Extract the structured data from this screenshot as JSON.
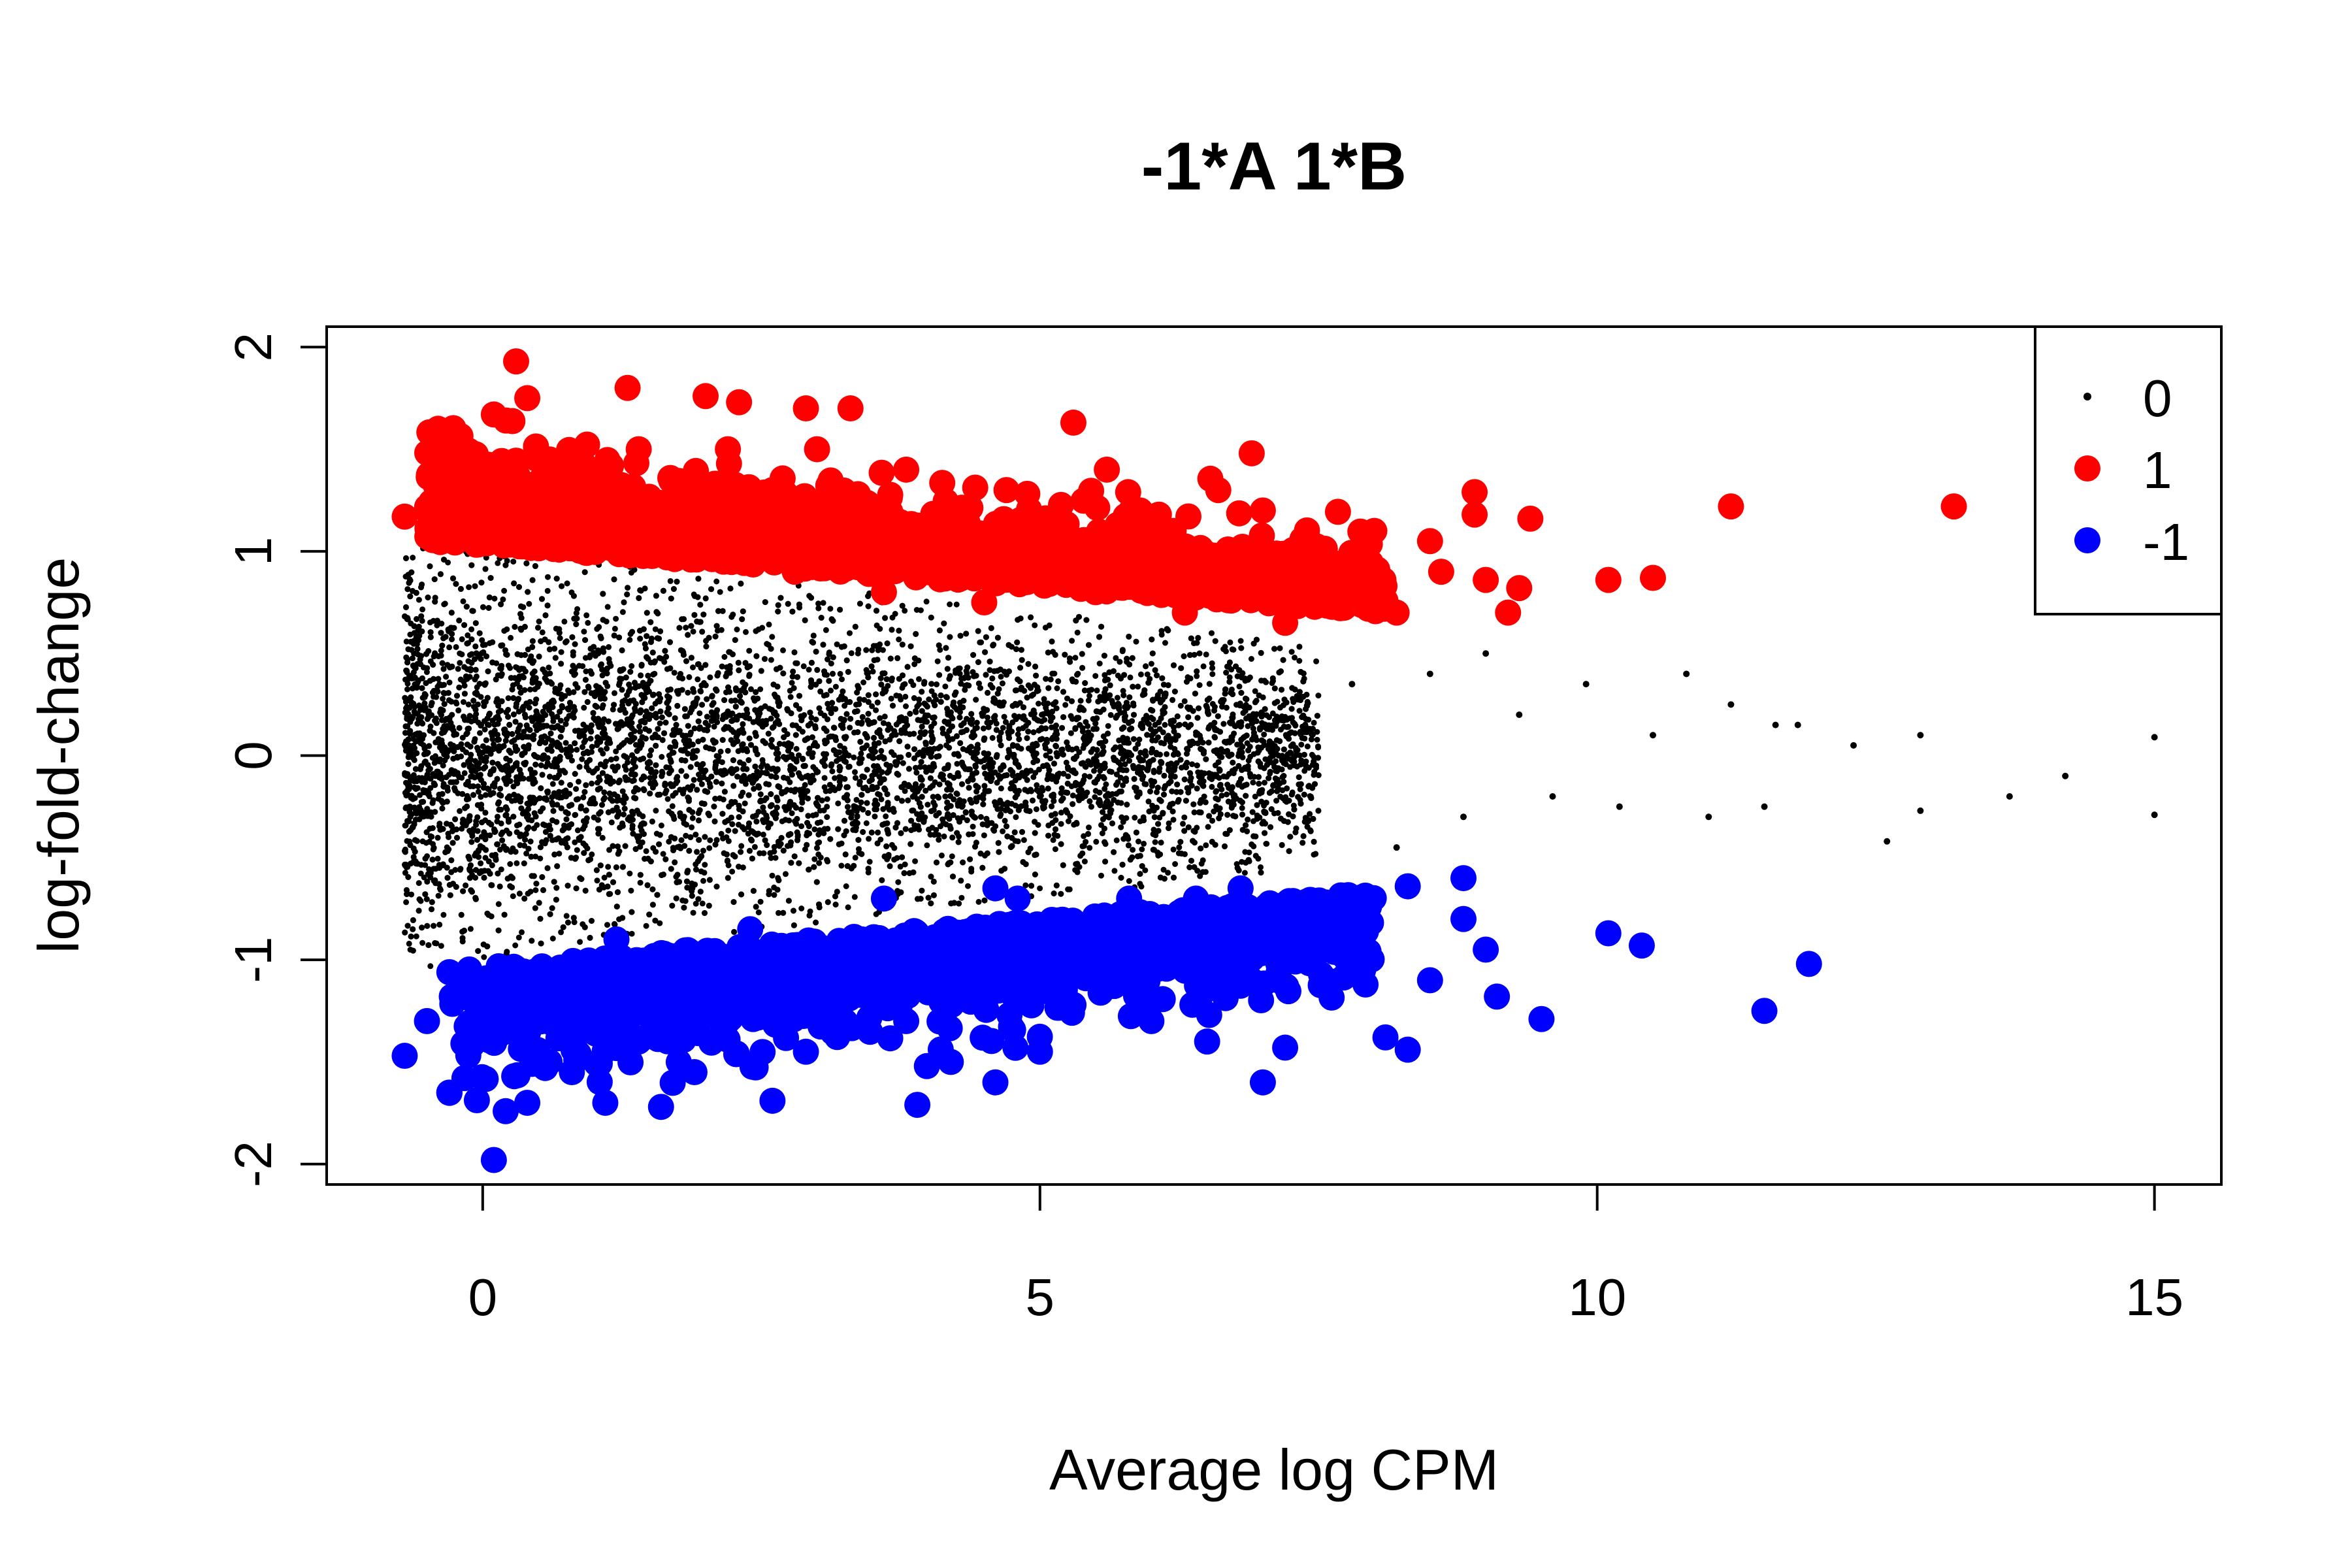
{
  "chart_data": {
    "type": "scatter",
    "title": "-1*A 1*B",
    "xlabel": "Average log CPM",
    "ylabel": "log-fold-change",
    "xlim": [
      -1.4,
      15.6
    ],
    "ylim": [
      -2.1,
      2.1
    ],
    "xticks": [
      "0",
      "5",
      "10",
      "15"
    ],
    "yticks": [
      "-2",
      "-1",
      "0",
      "1",
      "2"
    ],
    "grid": false,
    "legend": {
      "position": "top-right",
      "entries": [
        "0",
        "1",
        "-1"
      ]
    },
    "series": [
      {
        "name": "0",
        "color": "#000000",
        "marker": "small-dot",
        "density_bounds": {
          "x_range": [
            -0.7,
            7.5
          ],
          "lfc_upper_at_low_cpm": 1.05,
          "lfc_upper_at_high_cpm": 0.55
        },
        "points": [
          [
            7.8,
            0.35
          ],
          [
            8.2,
            -0.45
          ],
          [
            8.5,
            0.4
          ],
          [
            8.8,
            -0.3
          ],
          [
            9.0,
            0.5
          ],
          [
            9.3,
            0.2
          ],
          [
            9.6,
            -0.2
          ],
          [
            9.9,
            0.35
          ],
          [
            10.2,
            -0.25
          ],
          [
            10.5,
            0.1
          ],
          [
            10.8,
            0.4
          ],
          [
            11.0,
            -0.3
          ],
          [
            11.2,
            0.25
          ],
          [
            11.5,
            -0.25
          ],
          [
            11.6,
            0.15
          ],
          [
            11.8,
            0.15
          ],
          [
            12.3,
            0.05
          ],
          [
            12.6,
            -0.42
          ],
          [
            12.9,
            0.1
          ],
          [
            12.9,
            -0.27
          ],
          [
            13.7,
            -0.2
          ],
          [
            14.2,
            -0.1
          ],
          [
            15.0,
            0.09
          ],
          [
            15.0,
            -0.29
          ]
        ]
      },
      {
        "name": "1",
        "color": "#ff0000",
        "marker": "large-dot",
        "points": [
          [
            -0.7,
            1.17
          ],
          [
            -0.4,
            1.6
          ],
          [
            0.1,
            1.67
          ],
          [
            0.3,
            1.93
          ],
          [
            0.4,
            1.75
          ],
          [
            1.3,
            1.8
          ],
          [
            2.0,
            1.76
          ],
          [
            2.3,
            1.73
          ],
          [
            2.9,
            1.7
          ],
          [
            3.3,
            1.7
          ],
          [
            5.3,
            1.63
          ],
          [
            6.9,
            1.48
          ],
          [
            8.9,
            1.29
          ],
          [
            8.9,
            1.18
          ],
          [
            9.4,
            1.16
          ],
          [
            9.3,
            0.82
          ],
          [
            9.0,
            0.86
          ],
          [
            9.2,
            0.7
          ],
          [
            10.1,
            0.86
          ],
          [
            10.5,
            0.87
          ],
          [
            11.2,
            1.22
          ],
          [
            13.2,
            1.22
          ],
          [
            8.0,
            1.1
          ],
          [
            8.5,
            1.05
          ],
          [
            8.6,
            0.9
          ],
          [
            8.2,
            0.7
          ],
          [
            7.8,
            0.8
          ],
          [
            7.4,
            1.0
          ],
          [
            7.0,
            1.2
          ],
          [
            6.6,
            1.3
          ],
          [
            6.2,
            1.1
          ],
          [
            5.9,
            1.2
          ],
          [
            5.6,
            1.4
          ],
          [
            5.1,
            1.1
          ],
          [
            4.7,
            1.3
          ],
          [
            4.2,
            1.2
          ],
          [
            3.8,
            1.4
          ],
          [
            3.4,
            1.2
          ],
          [
            3.0,
            1.5
          ],
          [
            2.6,
            1.3
          ],
          [
            2.2,
            1.5
          ],
          [
            1.8,
            1.3
          ],
          [
            1.4,
            1.5
          ],
          [
            1.0,
            1.35
          ],
          [
            0.6,
            1.45
          ],
          [
            0.2,
            1.3
          ],
          [
            -0.3,
            1.25
          ],
          [
            -0.5,
            1.2
          ],
          [
            6.3,
            0.7
          ],
          [
            5.5,
            0.8
          ],
          [
            4.5,
            0.75
          ],
          [
            3.6,
            0.8
          ],
          [
            2.8,
            0.9
          ],
          [
            1.6,
            1.0
          ],
          [
            7.2,
            0.65
          ],
          [
            6.0,
            0.95
          ],
          [
            4.9,
            0.95
          ],
          [
            4.0,
            1.0
          ],
          [
            3.2,
            1.05
          ],
          [
            2.4,
            1.1
          ]
        ]
      },
      {
        "name": "-1",
        "color": "#0000ff",
        "marker": "large-dot",
        "points": [
          [
            -0.7,
            -1.47
          ],
          [
            -0.3,
            -1.65
          ],
          [
            0.1,
            -1.98
          ],
          [
            0.4,
            -1.7
          ],
          [
            1.1,
            -1.7
          ],
          [
            1.6,
            -1.72
          ],
          [
            2.6,
            -1.69
          ],
          [
            3.9,
            -1.71
          ],
          [
            4.6,
            -1.6
          ],
          [
            7.0,
            -1.6
          ],
          [
            7.2,
            -1.43
          ],
          [
            8.3,
            -1.44
          ],
          [
            8.1,
            -1.38
          ],
          [
            9.5,
            -1.29
          ],
          [
            9.1,
            -1.18
          ],
          [
            8.8,
            -0.8
          ],
          [
            8.3,
            -0.64
          ],
          [
            8.8,
            -0.6
          ],
          [
            10.1,
            -0.87
          ],
          [
            10.4,
            -0.93
          ],
          [
            11.5,
            -1.25
          ],
          [
            11.9,
            -1.02
          ],
          [
            7.7,
            -0.75
          ],
          [
            7.3,
            -0.9
          ],
          [
            6.9,
            -1.1
          ],
          [
            6.4,
            -0.7
          ],
          [
            6.0,
            -1.3
          ],
          [
            5.6,
            -0.9
          ],
          [
            5.2,
            -1.2
          ],
          [
            4.8,
            -0.7
          ],
          [
            4.3,
            -1.0
          ],
          [
            3.8,
            -1.3
          ],
          [
            3.4,
            -0.9
          ],
          [
            3.0,
            -1.2
          ],
          [
            2.6,
            -1.0
          ],
          [
            2.2,
            -1.3
          ],
          [
            1.8,
            -1.1
          ],
          [
            1.4,
            -1.4
          ],
          [
            1.0,
            -1.2
          ],
          [
            0.6,
            -1.5
          ],
          [
            0.2,
            -1.2
          ],
          [
            -0.2,
            -1.1
          ],
          [
            -0.5,
            -1.3
          ],
          [
            5.0,
            -1.45
          ],
          [
            6.5,
            -1.4
          ],
          [
            4.2,
            -1.5
          ],
          [
            2.9,
            -1.45
          ],
          [
            1.9,
            -1.55
          ],
          [
            0.8,
            -1.55
          ],
          [
            7.9,
            -1.05
          ],
          [
            8.5,
            -1.1
          ],
          [
            9.0,
            -0.95
          ],
          [
            6.8,
            -0.65
          ],
          [
            5.8,
            -0.7
          ],
          [
            4.6,
            -0.65
          ],
          [
            3.6,
            -0.7
          ],
          [
            2.4,
            -0.85
          ],
          [
            1.2,
            -0.9
          ]
        ]
      }
    ]
  }
}
